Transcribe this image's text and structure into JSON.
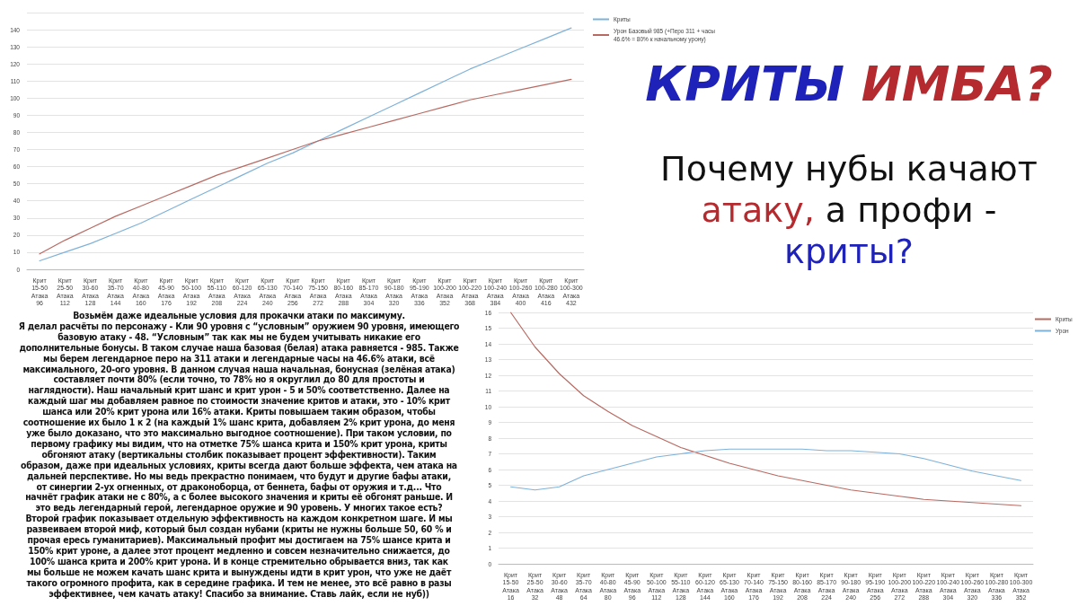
{
  "chart_data": [
    {
      "type": "line",
      "categories": [
        "Крит\n15-50\nАтака\n96",
        "Крит\n25-50\nАтака\n112",
        "Крит\n30-60\nАтака\n128",
        "Крит\n35-70\nАтака\n144",
        "Крит\n40-80\nАтака\n160",
        "Крит\n45-90\nАтака\n176",
        "Крит\n50-100\nАтака\n192",
        "Крит\n55-110\nАтака\n208",
        "Крит\n60-120\nАтака\n224",
        "Крит\n65-130\nАтака\n240",
        "Крит\n70-140\nАтака\n256",
        "Крит\n75-150\nАтака\n272",
        "Крит\n80-160\nАтака\n288",
        "Крит\n85-170\nАтака\n304",
        "Крит\n90-180\nАтака\n320",
        "Крит\n95-190\nАтака\n336",
        "Крит\n100-200\nАтака\n352",
        "Крит\n100-220\nАтака\n368",
        "Крит\n100-240\nАтака\n384",
        "Крит\n100-260\nАтака\n400",
        "Крит\n100-280\nАтака\n416",
        "Крит\n100-300\nАтака\n432"
      ],
      "series": [
        {
          "name": "Криты",
          "color": "#7fb2d9",
          "values": [
            5,
            10,
            15,
            21,
            27,
            34,
            41,
            48,
            55,
            62,
            68,
            75,
            82,
            89,
            96,
            103,
            110,
            117,
            123,
            129,
            135,
            141
          ]
        },
        {
          "name": "Урон Базовый 985 (+Перо 311 + часы\n46.6% = 80% к начальному урону)",
          "color": "#b86a62",
          "values": [
            9,
            17,
            24,
            31,
            37,
            43,
            49,
            55,
            60,
            65,
            70,
            75,
            79,
            83,
            87,
            91,
            95,
            99,
            102,
            105,
            108,
            111
          ]
        }
      ],
      "ylim": [
        0,
        150
      ],
      "yticks": [
        0,
        10,
        20,
        30,
        40,
        50,
        60,
        70,
        80,
        90,
        100,
        110,
        120,
        130,
        140,
        {
          "value": 150,
          "label": null
        }
      ],
      "grid": "y",
      "legend": "top right",
      "marker": "none",
      "line_style": "solid"
    },
    {
      "type": "line",
      "categories": [
        "Крит\n15-50\nАтака\n16",
        "Крит\n25-50\nАтака\n32",
        "Крит\n30-60\nАтака\n48",
        "Крит\n35-70\nАтака\n64",
        "Крит\n40-80\nАтака\n80",
        "Крит\n45-90\nАтака\n96",
        "Крит\n50-100\nАтака\n112",
        "Крит\n55-110\nАтака\n128",
        "Крит\n60-120\nАтака\n144",
        "Крит\n65-130\nАтака\n160",
        "Крит\n70-140\nАтака\n176",
        "Крит\n75-150\nАтака\n192",
        "Крит\n80-160\nАтака\n208",
        "Крит\n85-170\nАтака\n224",
        "Крит\n90-180\nАтака\n240",
        "Крит\n95-190\nАтака\n256",
        "Крит\n100-200\nАтака\n272",
        "Крит\n100-220\nАтака\n288",
        "Крит\n100-240\nАтака\n304",
        "Крит\n100-260\nАтака\n320",
        "Крит\n100-280\nАтака\n336",
        "Крит\n100-300\nАтака\n352"
      ],
      "series": [
        {
          "name": "Криты",
          "color": "#b86a62",
          "values": [
            16.0,
            13.8,
            12.1,
            10.7,
            9.7,
            8.8,
            8.1,
            7.4,
            6.9,
            6.4,
            6.0,
            5.6,
            5.3,
            5.0,
            4.7,
            4.5,
            4.3,
            4.1,
            4.0,
            3.9,
            3.8,
            3.7
          ]
        },
        {
          "name": "Урон",
          "color": "#7fb2d9",
          "values": [
            4.9,
            4.7,
            4.9,
            5.6,
            6.0,
            6.4,
            6.8,
            7.0,
            7.2,
            7.3,
            7.3,
            7.3,
            7.3,
            7.2,
            7.2,
            7.1,
            7.0,
            6.7,
            6.3,
            5.9,
            5.6,
            5.3
          ]
        }
      ],
      "ylim": [
        0,
        16
      ],
      "yticks": [
        0,
        1,
        2,
        3,
        4,
        5,
        6,
        7,
        8,
        9,
        10,
        11,
        12,
        13,
        14,
        15,
        16
      ],
      "grid": "y",
      "legend": "top right",
      "marker": "none",
      "line_style": "solid"
    },
    {
      "type": "other",
      "title": "КРИТЫ ИМБА?",
      "subtitle": "Почему нубы качают атаку, а профи - криты?"
    },
    {
      "type": "other",
      "annotations": [
        "Возьмём даже идеальные условия для прокачки атаки по максимуму.",
        "Я делал расчёты по персонажу - Кли 90 уровня с “условным” оружием 90 уровня, имеющего",
        "базовую атаку - 48. “Условным” так как мы не будем учитывать никакие его",
        "дополнительные бонусы. В таком случае наша базовая (белая) атака равняется - 985. Также",
        "мы берем легендарное перо на 311 атаки и легендарные часы на 46.6% атаки, всё",
        "максимального, 20-ого уровня. В данном случая наша начальная, бонусная (зелёная атака)",
        "составляет почти 80% (если точно, то 78% но я округлил до 80 для простоты и",
        "наглядности). Наш начальный крит шанс и крит урон - 5 и 50% соответственно. Далее на",
        "каждый шаг мы добавляем равное по стоимости значение критов и атаки, это - 10% крит",
        "шанса или 20% крит урона или 16% атаки. Криты повышаем таким образом, чтобы",
        "соотношение их было 1 к 2 (на каждый 1% шанс крита, добавляем 2% крит урона, до меня",
        "уже было доказано, что это максимально выгодное соотношение). При таком условии, по",
        "первому графику мы видим, что на отметке 75% шанса крита и 150% крит урона, криты",
        "обгоняют атаку (вертикальны столбик показывает процент эффективности). Таким",
        "образом, даже при идеальных условиях, криты всегда дают больше эффекта, чем атака на",
        "дальней перспективе. Но мы ведь прекрастно понимаем, что будут и другие бафы атаки,",
        "от синергии 2-ух огненных, от драконоборца, от беннета, бафы от оружия и т.д... Что",
        "начнёт график атаки не с 80%, а с более высокого значения и криты её обгонят раньше. И",
        "это ведь легендарный герой, легендарное оружие и 90 уровень. У многих такое есть?",
        "Второй график показывает отдельную эффективность на каждом конкретном шаге. И мы",
        "развеиваем второй миф, который был создан нубами (криты не нужны больше 50, 60 % и",
        "прочая ересь гуманитариев). Максимальный профит мы достигаем на 75% шансе крита и",
        "150% крит уроне, а далее этот процент медленно и совсем незначительно снижается, до",
        "100% шанса крита и 200% крит урона. И в конце стремительно обрывается вниз, так как",
        "мы больше не можем качать шанс крита и вынуждены идти в крит урон, что уже не даёт",
        "такого огромного профита, как в середине графика. И тем не менее, это всё равно в разы",
        "эффективнее, чем качать атаку! Спасибо за внимание. Ставь лайк, если не нуб))"
      ]
    }
  ]
}
